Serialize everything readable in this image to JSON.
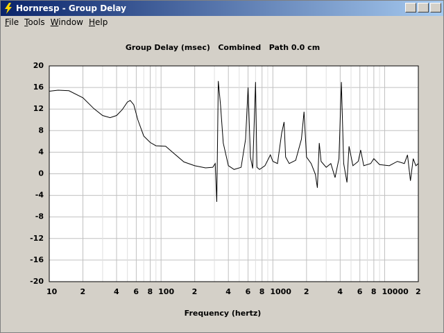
{
  "window": {
    "title": "Hornresp - Group Delay"
  },
  "menu": [
    "File",
    "Tools",
    "Window",
    "Help"
  ],
  "chart_data": {
    "type": "line",
    "title": "Group Delay (msec)   Combined   Path 0.0 cm",
    "x_label": "Frequency (hertz)",
    "log_x": true,
    "grid": true,
    "color": "#000000",
    "xlim": [
      10,
      20000
    ],
    "ylim": [
      -20,
      20
    ],
    "xticks": [
      10,
      {
        "value": 20,
        "label": "2"
      },
      {
        "value": 40,
        "label": "4"
      },
      {
        "value": 60,
        "label": "6"
      },
      {
        "value": 80,
        "label": "8"
      },
      100,
      {
        "value": 200,
        "label": "2"
      },
      {
        "value": 400,
        "label": "4"
      },
      {
        "value": 600,
        "label": "6"
      },
      {
        "value": 800,
        "label": "8"
      },
      1000,
      {
        "value": 2000,
        "label": "2"
      },
      {
        "value": 4000,
        "label": "4"
      },
      {
        "value": 6000,
        "label": "6"
      },
      {
        "value": 8000,
        "label": "8"
      },
      10000,
      {
        "value": 20000,
        "label": "2"
      }
    ],
    "xminorticks": [
      30,
      50,
      70,
      90,
      300,
      500,
      700,
      900,
      3000,
      5000,
      7000,
      9000
    ],
    "yticks": [
      -20,
      -16,
      -12,
      -8,
      -4,
      0,
      4,
      8,
      12,
      16,
      20
    ],
    "x": [
      10,
      12,
      15,
      20,
      25,
      30,
      35,
      40,
      45,
      50,
      53,
      57,
      62,
      70,
      80,
      90,
      110,
      130,
      160,
      200,
      250,
      290,
      305,
      315,
      325,
      340,
      360,
      400,
      450,
      520,
      570,
      600,
      630,
      660,
      700,
      720,
      760,
      850,
      950,
      1000,
      1100,
      1200,
      1260,
      1300,
      1400,
      1600,
      1800,
      1900,
      2000,
      2200,
      2400,
      2500,
      2600,
      2700,
      3000,
      3300,
      3600,
      3900,
      4100,
      4300,
      4600,
      4800,
      5200,
      5800,
      6100,
      6500,
      7500,
      8000,
      9000,
      11000,
      13000,
      15000,
      16000,
      17000,
      18000,
      19000,
      20000
    ],
    "values": [
      15.3,
      15.5,
      15.4,
      14.1,
      12.1,
      10.8,
      10.4,
      10.8,
      11.9,
      13.3,
      13.6,
      12.8,
      10,
      7,
      5.8,
      5.2,
      5.1,
      3.8,
      2.2,
      1.5,
      1.1,
      1.2,
      1.9,
      -5.2,
      17.2,
      12.8,
      5.7,
      1.5,
      0.8,
      1.2,
      6.4,
      16,
      3.1,
      1,
      17,
      1.2,
      0.8,
      1.5,
      3.5,
      2.3,
      1.9,
      7.6,
      9.6,
      3.1,
      1.9,
      2.5,
      6.4,
      11.5,
      3.1,
      1.9,
      -0.1,
      -2.6,
      5.7,
      2.3,
      1.2,
      1.9,
      -0.7,
      2.8,
      17,
      1.9,
      -1.6,
      5.1,
      1.5,
      2.3,
      4.4,
      1.5,
      1.9,
      2.8,
      1.7,
      1.5,
      2.3,
      1.9,
      3.5,
      -1.3,
      2.8,
      1.5,
      1.9
    ]
  }
}
